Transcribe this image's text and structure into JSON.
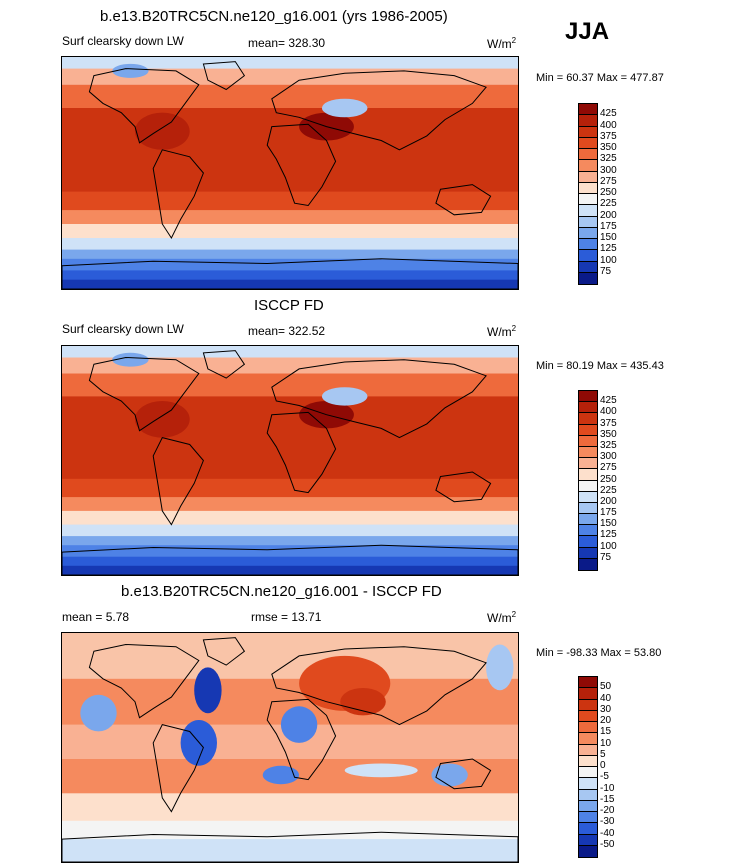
{
  "header": {
    "season": "JJA"
  },
  "panels": [
    {
      "title": "b.e13.B20TRC5CN.ne120_g16.001 (yrs 1986-2005)",
      "left_label": "Surf clearsky down LW",
      "stat_label": "mean= 328.30",
      "units": "W/m",
      "units_sup": "2",
      "minmax": "Min = 60.37 Max = 477.87",
      "kind": "abs"
    },
    {
      "title": "ISCCP FD",
      "left_label": "Surf clearsky down LW",
      "stat_label": "mean= 322.52",
      "units": "W/m",
      "units_sup": "2",
      "minmax": "Min = 80.19 Max = 435.43",
      "kind": "abs"
    },
    {
      "title": "b.e13.B20TRC5CN.ne120_g16.001 - ISCCP FD",
      "left_label": "mean = 5.78",
      "stat_label": "rmse = 13.71",
      "units": "W/m",
      "units_sup": "2",
      "minmax": "Min = -98.33 Max = 53.80",
      "kind": "diff"
    }
  ],
  "colorbars": {
    "abs": {
      "levels": [
        "425",
        "400",
        "375",
        "350",
        "325",
        "300",
        "275",
        "250",
        "225",
        "200",
        "175",
        "150",
        "125",
        "100",
        "75"
      ],
      "colors": [
        "#8f0a05",
        "#b5210a",
        "#cc3410",
        "#e04a1e",
        "#ee6a3c",
        "#f58a5e",
        "#f9b193",
        "#fde0cc",
        "#f4f4f4",
        "#cfe2f7",
        "#a7c7f2",
        "#7aa7ec",
        "#4e82e6",
        "#2b5cd8",
        "#1638b3",
        "#0a1a88"
      ]
    },
    "diff": {
      "levels": [
        "50",
        "40",
        "30",
        "20",
        "15",
        "10",
        "5",
        "0",
        "-5",
        "-10",
        "-15",
        "-20",
        "-30",
        "-40",
        "-50"
      ],
      "colors": [
        "#8f0a05",
        "#b5210a",
        "#cc3410",
        "#e04a1e",
        "#ee6a3c",
        "#f58a5e",
        "#f9b193",
        "#fde0cc",
        "#f4f4f4",
        "#cfe2f7",
        "#a7c7f2",
        "#7aa7ec",
        "#4e82e6",
        "#2b5cd8",
        "#1638b3",
        "#0a1a88"
      ]
    }
  },
  "chart_data": [
    {
      "type": "heatmap",
      "title": "b.e13.B20TRC5CN.ne120_g16.001 (yrs 1986-2005)",
      "variable": "Surf clearsky down LW",
      "mean": 328.3,
      "min": 60.37,
      "max": 477.87,
      "units": "W/m^2",
      "contour_levels": [
        75,
        100,
        125,
        150,
        175,
        200,
        225,
        250,
        275,
        300,
        325,
        350,
        375,
        400,
        425
      ]
    },
    {
      "type": "heatmap",
      "title": "ISCCP FD",
      "variable": "Surf clearsky down LW",
      "mean": 322.52,
      "min": 80.19,
      "max": 435.43,
      "units": "W/m^2",
      "contour_levels": [
        75,
        100,
        125,
        150,
        175,
        200,
        225,
        250,
        275,
        300,
        325,
        350,
        375,
        400,
        425
      ]
    },
    {
      "type": "heatmap",
      "title": "b.e13.B20TRC5CN.ne120_g16.001 - ISCCP FD",
      "mean": 5.78,
      "rmse": 13.71,
      "min": -98.33,
      "max": 53.8,
      "units": "W/m^2",
      "contour_levels": [
        -50,
        -40,
        -30,
        -20,
        -15,
        -10,
        -5,
        0,
        5,
        10,
        15,
        20,
        30,
        40,
        50
      ]
    }
  ]
}
